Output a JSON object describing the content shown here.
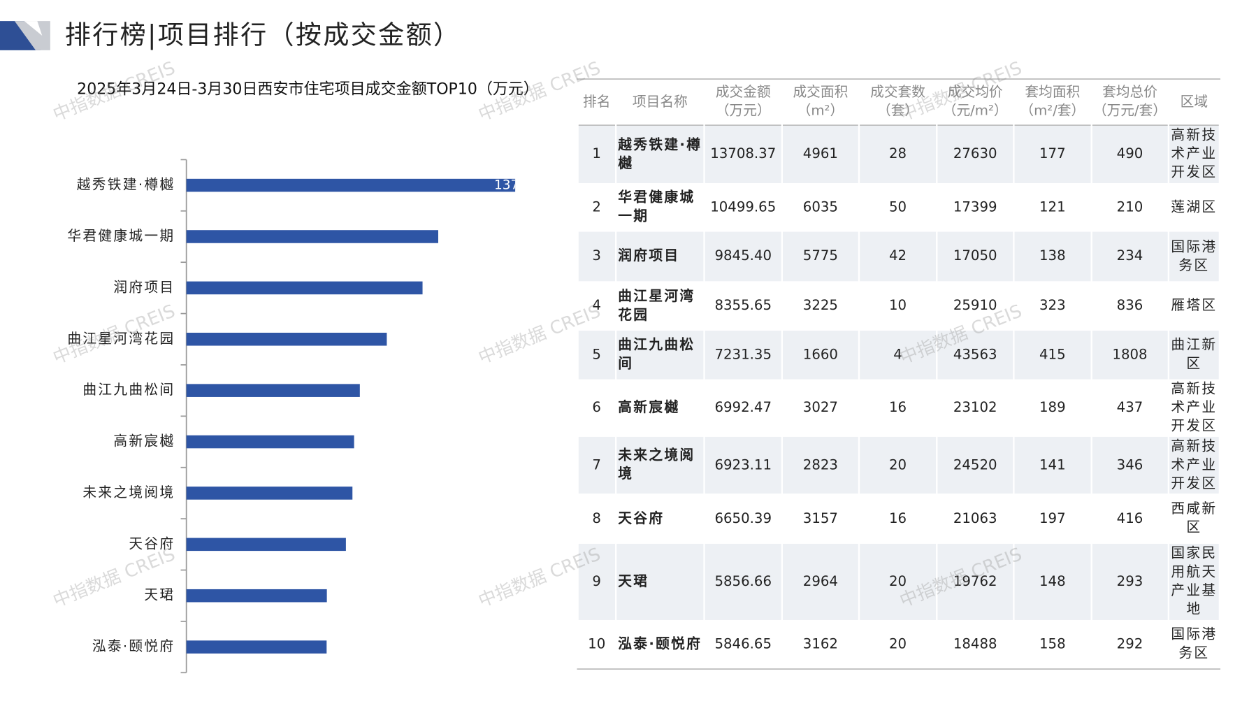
{
  "header": {
    "title": "排行榜|项目排行（按成交金额）"
  },
  "watermark": "中指数据 CREIS",
  "chart_data": {
    "type": "hbar",
    "title": "2025年3月24日-3月30日西安市住宅项目成交金额TOP10（万元）",
    "categories": [
      "越秀铁建·樽樾",
      "华君健康城一期",
      "润府项目",
      "曲江星河湾花园",
      "曲江九曲松间",
      "高新宸樾",
      "未来之境阅境",
      "天谷府",
      "天珺",
      "泓泰·颐悦府"
    ],
    "values": [
      13708.37,
      10499.65,
      9845.4,
      8355.65,
      7231.35,
      6992.47,
      6923.11,
      6650.39,
      5856.66,
      5846.65
    ],
    "color": "#2e55a5",
    "xlim": [
      0,
      15000
    ]
  },
  "table": {
    "columns": [
      [
        "排名"
      ],
      [
        "项目名称"
      ],
      [
        "成交金额",
        "（万元）"
      ],
      [
        "成交面积",
        "（m²）"
      ],
      [
        "成交套数",
        "（套）"
      ],
      [
        "成交均价",
        "（元/m²）"
      ],
      [
        "套均面积",
        "（m²/套）"
      ],
      [
        "套均总价",
        "（万元/套）"
      ],
      [
        "区域"
      ]
    ],
    "rows": [
      [
        "1",
        "越秀铁建·樽樾",
        "13708.37",
        "4961",
        "28",
        "27630",
        "177",
        "490",
        "高新技术产业开发区"
      ],
      [
        "2",
        "华君健康城一期",
        "10499.65",
        "6035",
        "50",
        "17399",
        "121",
        "210",
        "莲湖区"
      ],
      [
        "3",
        "润府项目",
        "9845.40",
        "5775",
        "42",
        "17050",
        "138",
        "234",
        "国际港务区"
      ],
      [
        "4",
        "曲江星河湾花园",
        "8355.65",
        "3225",
        "10",
        "25910",
        "323",
        "836",
        "雁塔区"
      ],
      [
        "5",
        "曲江九曲松间",
        "7231.35",
        "1660",
        "4",
        "43563",
        "415",
        "1808",
        "曲江新区"
      ],
      [
        "6",
        "高新宸樾",
        "6992.47",
        "3027",
        "16",
        "23102",
        "189",
        "437",
        "高新技术产业开发区"
      ],
      [
        "7",
        "未来之境阅境",
        "6923.11",
        "2823",
        "20",
        "24520",
        "141",
        "346",
        "高新技术产业开发区"
      ],
      [
        "8",
        "天谷府",
        "6650.39",
        "3157",
        "16",
        "21063",
        "197",
        "416",
        "西咸新区"
      ],
      [
        "9",
        "天珺",
        "5856.66",
        "2964",
        "20",
        "19762",
        "148",
        "293",
        "国家民用航天产业基地"
      ],
      [
        "10",
        "泓泰·颐悦府",
        "5846.65",
        "3162",
        "20",
        "18488",
        "158",
        "292",
        "国际港务区"
      ]
    ]
  }
}
